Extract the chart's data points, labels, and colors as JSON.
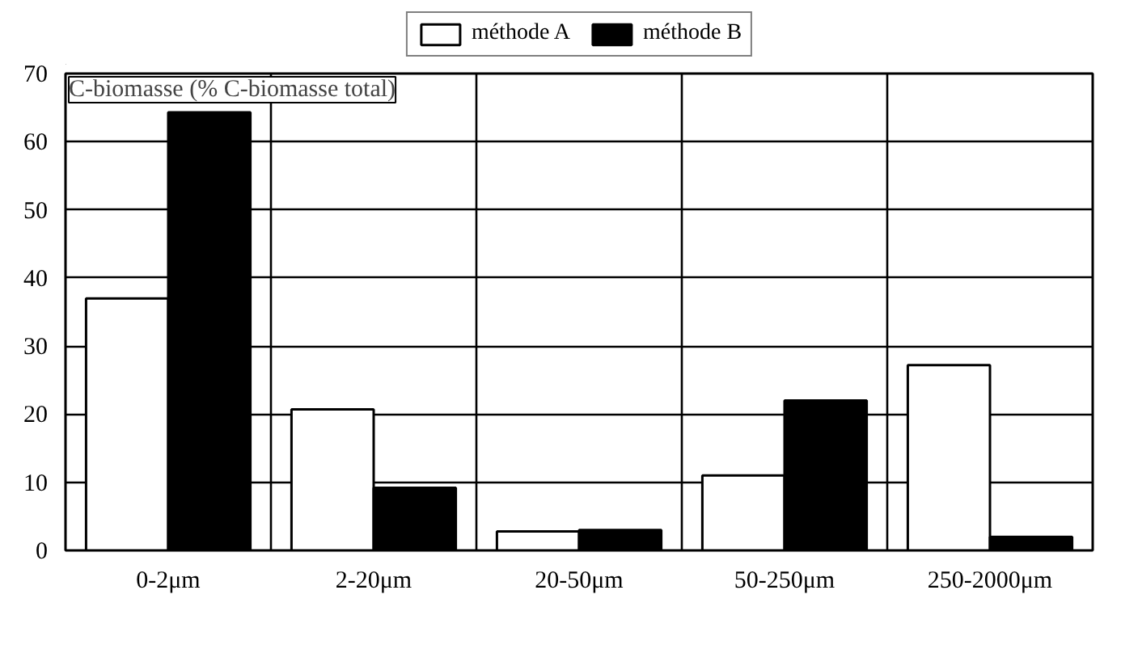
{
  "chart_data": {
    "type": "bar",
    "ylabel": "C-biomasse (% C-biomasse total)",
    "categories": [
      "0-2μm",
      "2-20μm",
      "20-50μm",
      "50-250μm",
      "250-2000μm"
    ],
    "series": [
      {
        "name": "méthode A",
        "color": "#ffffff",
        "values": [
          37,
          20.7,
          2.8,
          11,
          27.2
        ]
      },
      {
        "name": "méthode B",
        "color": "#000000",
        "values": [
          64.3,
          9.2,
          3,
          22,
          2
        ]
      }
    ],
    "ylim": [
      0,
      70
    ],
    "yticks": [
      0,
      10,
      20,
      30,
      40,
      50,
      60,
      70
    ],
    "grid": true,
    "legend": "top"
  }
}
